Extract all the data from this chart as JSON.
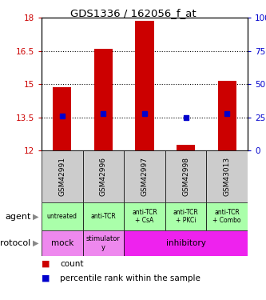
{
  "title": "GDS1336 / 162056_f_at",
  "samples": [
    "GSM42991",
    "GSM42996",
    "GSM42997",
    "GSM42998",
    "GSM43013"
  ],
  "bar_bottoms": [
    12,
    12,
    12,
    12,
    12
  ],
  "bar_tops": [
    14.85,
    16.6,
    17.85,
    12.25,
    15.15
  ],
  "percentile_values": [
    13.55,
    13.65,
    13.65,
    13.5,
    13.65
  ],
  "ylim": [
    12,
    18
  ],
  "yticks_left": [
    12,
    13.5,
    15,
    16.5,
    18
  ],
  "yticks_right": [
    0,
    25,
    50,
    75,
    100
  ],
  "ytick_labels_left": [
    "12",
    "13.5",
    "15",
    "16.5",
    "18"
  ],
  "ytick_labels_right": [
    "0",
    "25",
    "50",
    "75",
    "100%"
  ],
  "bar_color": "#cc0000",
  "percentile_color": "#0000cc",
  "grid_color": "#000000",
  "agent_labels": [
    "untreated",
    "anti-TCR",
    "anti-TCR\n+ CsA",
    "anti-TCR\n+ PKCi",
    "anti-TCR\n+ Combo"
  ],
  "agent_bg": "#aaffaa",
  "protocol_bg_mock": "#ee88ee",
  "protocol_bg_stimulatory": "#ee88ee",
  "protocol_bg_inhibitory": "#ee22ee",
  "sample_bg": "#cccccc",
  "legend_count_color": "#cc0000",
  "legend_percentile_color": "#0000cc",
  "left_label_color": "#cc0000",
  "right_label_color": "#0000cc"
}
